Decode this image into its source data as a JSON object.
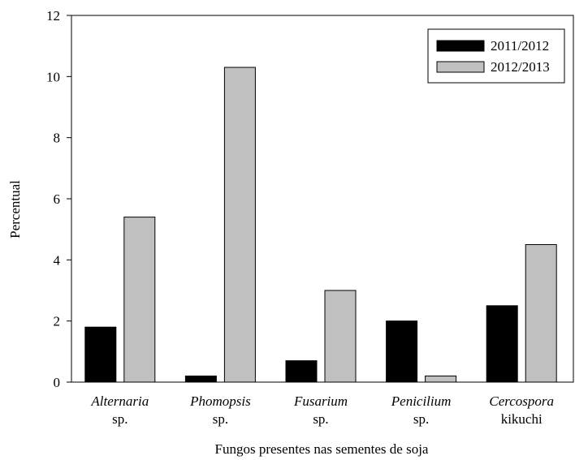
{
  "chart_data": {
    "type": "bar",
    "title": "",
    "xlabel": "Fungos presentes nas sementes de soja",
    "ylabel": "Percentual",
    "ylim": [
      0,
      12
    ],
    "yticks": [
      0,
      2,
      4,
      6,
      8,
      10,
      12
    ],
    "grid": false,
    "legend_position": "top-right",
    "categories": [
      {
        "line1": "Alternaria",
        "line2": "sp."
      },
      {
        "line1": "Phomopsis",
        "line2": "sp."
      },
      {
        "line1": "Fusarium",
        "line2": "sp."
      },
      {
        "line1": "Penicilium",
        "line2": "sp."
      },
      {
        "line1": "Cercospora",
        "line2": "kikuchi"
      }
    ],
    "series": [
      {
        "name": "2011/2012",
        "color": "#000000",
        "values": [
          1.8,
          0.2,
          0.7,
          2.0,
          2.5
        ]
      },
      {
        "name": "2012/2013",
        "color": "#c0c0c0",
        "values": [
          5.4,
          10.3,
          3.0,
          0.2,
          4.5
        ]
      }
    ]
  }
}
